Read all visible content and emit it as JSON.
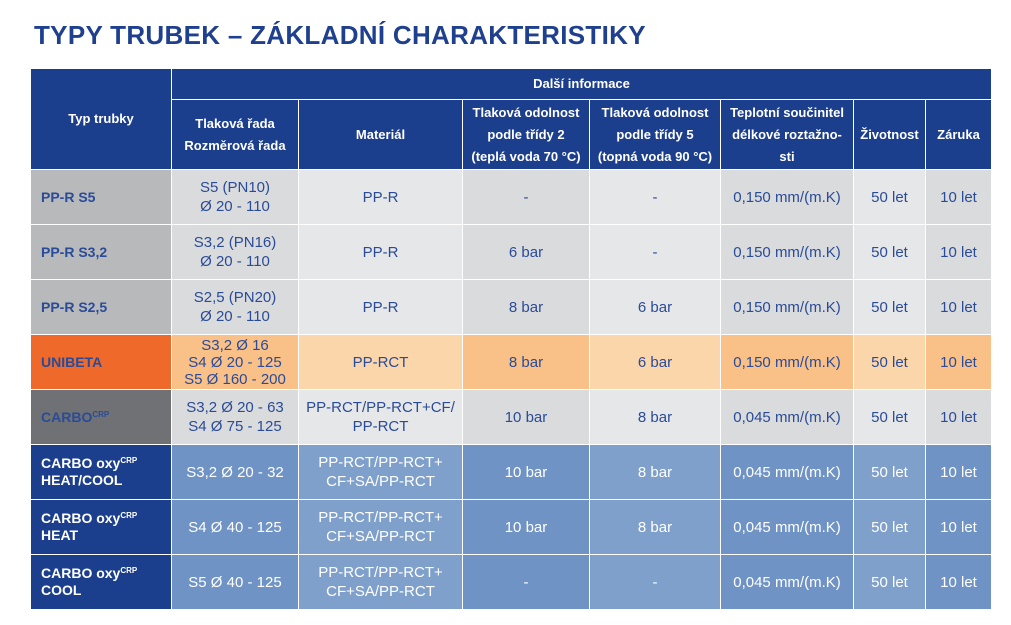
{
  "title": "TYPY TRUBEK – ZÁKLADNÍ CHARAKTERISTIKY",
  "header": {
    "col_type": "Typ trubky",
    "group": "Další informace",
    "sub": [
      [
        "Tlaková řada",
        "Rozměrová řada"
      ],
      [
        "Materiál"
      ],
      [
        "Tlaková odolnost",
        "podle třídy 2",
        "(teplá voda 70 °C)"
      ],
      [
        "Tlaková odolnost",
        "podle třídy 5",
        "(topná voda 90 °C)"
      ],
      [
        "Teplotní součinitel",
        "délkové roztažno-",
        "sti"
      ],
      [
        "Životnost"
      ],
      [
        "Záruka"
      ]
    ]
  },
  "colors": {
    "navy": "#1c3f8d",
    "orange": "#ef6a2a",
    "grey": "#b8b9bb",
    "dark_grey": "#6f7174"
  },
  "rows": [
    {
      "type": [
        "PP-R S5"
      ],
      "sup": [
        "",
        ""
      ],
      "series": [
        "S5 (PN10)",
        "Ø 20 - 110"
      ],
      "material": [
        "PP-R"
      ],
      "class2": "-",
      "class5": "-",
      "coef": "0,150 mm/(m.K)",
      "life": "50 let",
      "warranty": "10 let"
    },
    {
      "type": [
        "PP-R S3,2"
      ],
      "sup": [
        "",
        ""
      ],
      "series": [
        "S3,2 (PN16)",
        "Ø 20 - 110"
      ],
      "material": [
        "PP-R"
      ],
      "class2": "6 bar",
      "class5": "-",
      "coef": "0,150 mm/(m.K)",
      "life": "50 let",
      "warranty": "10 let"
    },
    {
      "type": [
        "PP-R S2,5"
      ],
      "sup": [
        "",
        ""
      ],
      "series": [
        "S2,5 (PN20)",
        "Ø 20 - 110"
      ],
      "material": [
        "PP-R"
      ],
      "class2": "8 bar",
      "class5": "6 bar",
      "coef": "0,150 mm/(m.K)",
      "life": "50 let",
      "warranty": "10 let"
    },
    {
      "type": [
        "UNIBETA"
      ],
      "sup": [
        "",
        ""
      ],
      "series": [
        "S3,2 Ø 16",
        "S4 Ø 20 - 125",
        "S5 Ø 160 - 200"
      ],
      "material": [
        "PP-RCT"
      ],
      "class2": "8 bar",
      "class5": "6 bar",
      "coef": "0,150 mm/(m.K)",
      "life": "50 let",
      "warranty": "10 let"
    },
    {
      "type": [
        "CARBO"
      ],
      "sup": [
        "CRP",
        ""
      ],
      "series": [
        "S3,2 Ø 20 - 63",
        "S4 Ø 75 - 125"
      ],
      "material": [
        "PP-RCT/PP-RCT+CF/",
        "PP-RCT"
      ],
      "class2": "10 bar",
      "class5": "8 bar",
      "coef": "0,045 mm/(m.K)",
      "life": "50 let",
      "warranty": "10 let"
    },
    {
      "type": [
        "CARBO oxy",
        "HEAT/COOL"
      ],
      "sup": [
        "CRP",
        ""
      ],
      "series": [
        "S3,2 Ø 20 - 32"
      ],
      "material": [
        "PP-RCT/PP-RCT+",
        "CF+SA/PP-RCT"
      ],
      "class2": "10 bar",
      "class5": "8 bar",
      "coef": "0,045 mm/(m.K)",
      "life": "50 let",
      "warranty": "10 let"
    },
    {
      "type": [
        "CARBO oxy",
        "HEAT"
      ],
      "sup": [
        "CRP",
        ""
      ],
      "series": [
        "S4 Ø 40 - 125"
      ],
      "material": [
        "PP-RCT/PP-RCT+",
        "CF+SA/PP-RCT"
      ],
      "class2": "10 bar",
      "class5": "8 bar",
      "coef": "0,045 mm/(m.K)",
      "life": "50 let",
      "warranty": "10 let"
    },
    {
      "type": [
        "CARBO oxy",
        "COOL"
      ],
      "sup": [
        "CRP",
        ""
      ],
      "series": [
        "S5 Ø 40 - 125"
      ],
      "material": [
        "PP-RCT/PP-RCT+",
        "CF+SA/PP-RCT"
      ],
      "class2": "-",
      "class5": "-",
      "coef": "0,045 mm/(m.K)",
      "life": "50 let",
      "warranty": "10 let"
    }
  ]
}
